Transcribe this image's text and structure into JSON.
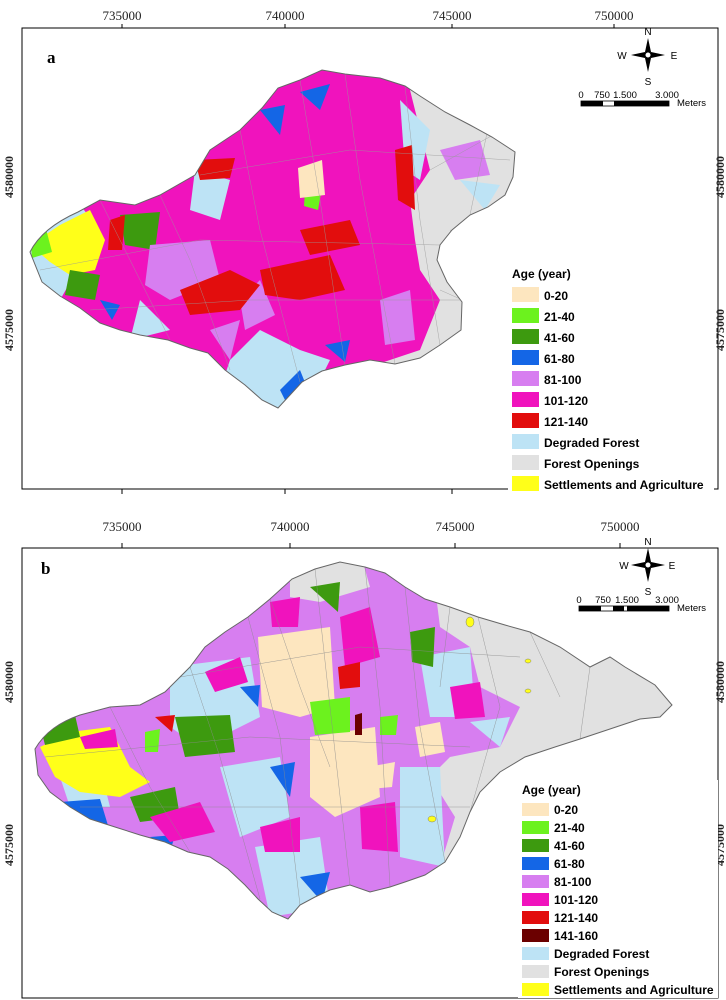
{
  "x_ticks": [
    "735000",
    "740000",
    "745000",
    "750000"
  ],
  "y_ticks": [
    "4580000",
    "4575000"
  ],
  "compass": {
    "n": "N",
    "e": "E",
    "s": "S",
    "w": "W"
  },
  "scale": {
    "labels": [
      "0",
      "750",
      "1.500",
      "3.000"
    ],
    "unit": "Meters"
  },
  "legend_title": "Age (year)",
  "colors": {
    "0-20": "#fde6bf",
    "21-40": "#6cf21e",
    "41-60": "#3d9a0f",
    "61-80": "#1466e6",
    "81-100": "#d77ef0",
    "101-120": "#f013bd",
    "121-140": "#e20d0d",
    "141-160": "#6b0000",
    "degraded": "#bde3f5",
    "openings": "#e1e1e1",
    "settlements": "#ffff19",
    "frame": "#000000"
  },
  "panels": [
    {
      "label": "a",
      "legend": [
        {
          "label": "0-20",
          "color": "#fde6bf"
        },
        {
          "label": "21-40",
          "color": "#6cf21e"
        },
        {
          "label": "41-60",
          "color": "#3d9a0f"
        },
        {
          "label": "61-80",
          "color": "#1466e6"
        },
        {
          "label": "81-100",
          "color": "#d77ef0"
        },
        {
          "label": "101-120",
          "color": "#f013bd"
        },
        {
          "label": "121-140",
          "color": "#e20d0d"
        },
        {
          "label": "Degraded Forest",
          "color": "#bde3f5"
        },
        {
          "label": "Forest Openings",
          "color": "#e1e1e1"
        },
        {
          "label": "Settlements and Agriculture",
          "color": "#ffff19"
        }
      ]
    },
    {
      "label": "b",
      "legend": [
        {
          "label": "0-20",
          "color": "#fde6bf"
        },
        {
          "label": "21-40",
          "color": "#6cf21e"
        },
        {
          "label": "41-60",
          "color": "#3d9a0f"
        },
        {
          "label": "61-80",
          "color": "#1466e6"
        },
        {
          "label": "81-100",
          "color": "#d77ef0"
        },
        {
          "label": "101-120",
          "color": "#f013bd"
        },
        {
          "label": "121-140",
          "color": "#e20d0d"
        },
        {
          "label": "141-160",
          "color": "#6b0000"
        },
        {
          "label": "Degraded Forest",
          "color": "#bde3f5"
        },
        {
          "label": "Forest Openings",
          "color": "#e1e1e1"
        },
        {
          "label": "Settlements and Agriculture",
          "color": "#ffff19"
        }
      ]
    }
  ]
}
